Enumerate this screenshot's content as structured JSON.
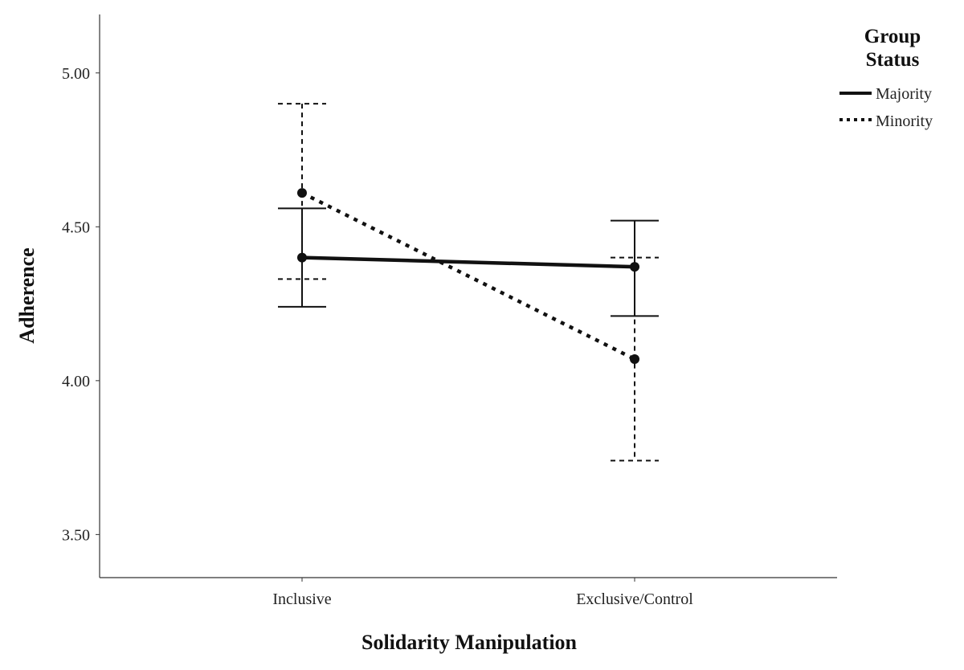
{
  "chart_data": {
    "type": "line",
    "xlabel": "Solidarity Manipulation",
    "ylabel": "Adherence",
    "categories": [
      "Inclusive",
      "Exclusive/Control"
    ],
    "ylim": [
      3.36,
      5.19
    ],
    "yticks": [
      "3.50",
      "4.00",
      "4.50",
      "5.00"
    ],
    "grid": false,
    "legend": {
      "title_lines": [
        "Group",
        "Status"
      ],
      "placement": "top-right"
    },
    "series": [
      {
        "name": "Majority",
        "style": "solid",
        "values": [
          4.4,
          4.37
        ],
        "ci_lower": [
          4.24,
          4.21
        ],
        "ci_upper": [
          4.56,
          4.52
        ]
      },
      {
        "name": "Minority",
        "style": "dotted",
        "values": [
          4.61,
          4.07
        ],
        "ci_lower": [
          4.33,
          3.74
        ],
        "ci_upper": [
          4.9,
          4.4
        ]
      }
    ],
    "colors": {
      "line": "#111111",
      "axis": "#333333"
    }
  }
}
